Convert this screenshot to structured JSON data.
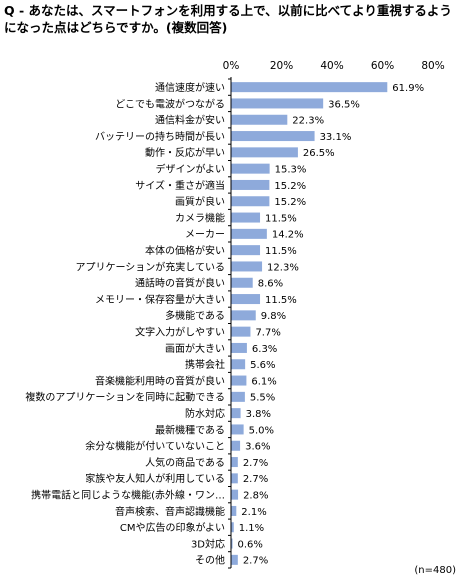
{
  "title": "Q - あなたは、スマートフォンを利用する上で、以前に比べてより重視するようになった点はどちらですか。(複数回答)",
  "note": "(n=480)",
  "colors": {
    "bar": "#8eaadb",
    "axis": "#000000",
    "text": "#000000"
  },
  "chart_data": {
    "type": "bar",
    "orientation": "horizontal",
    "title": "Q - あなたは、スマートフォンを利用する上で、以前に比べてより重視するようになった点はどちらですか。(複数回答)",
    "xlabel": "",
    "ylabel": "",
    "xlim": [
      0,
      80
    ],
    "ticks": [
      "0%",
      "20%",
      "40%",
      "60%",
      "80%"
    ],
    "grid": false,
    "legend": "none",
    "categories": [
      "通信速度が速い",
      "どこでも電波がつながる",
      "通信料金が安い",
      "バッテリーの持ち時間が長い",
      "動作・反応が早い",
      "デザインがよい",
      "サイズ・重さが適当",
      "画質が良い",
      "カメラ機能",
      "メーカー",
      "本体の価格が安い",
      "アプリケーションが充実している",
      "通話時の音質が良い",
      "メモリー・保存容量が大きい",
      "多機能である",
      "文字入力がしやすい",
      "画面が大きい",
      "携帯会社",
      "音楽機能利用時の音質が良い",
      "複数のアプリケーションを同時に起動できる",
      "防水対応",
      "最新機種である",
      "余分な機能が付いていないこと",
      "人気の商品である",
      "家族や友人知人が利用している",
      "携帯電話と同じような機能(赤外線・ワン…",
      "音声検索、音声認識機能",
      "CMや広告の印象がよい",
      "3D対応",
      "その他"
    ],
    "values": [
      61.9,
      36.5,
      22.3,
      33.1,
      26.5,
      15.3,
      15.2,
      15.2,
      11.5,
      14.2,
      11.5,
      12.3,
      8.6,
      11.5,
      9.8,
      7.7,
      6.3,
      5.6,
      6.1,
      5.5,
      3.8,
      5.0,
      3.6,
      2.7,
      2.7,
      2.8,
      2.1,
      1.1,
      0.6,
      2.7
    ],
    "value_labels": [
      "61.9%",
      "36.5%",
      "22.3%",
      "33.1%",
      "26.5%",
      "15.3%",
      "15.2%",
      "15.2%",
      "11.5%",
      "14.2%",
      "11.5%",
      "12.3%",
      "8.6%",
      "11.5%",
      "9.8%",
      "7.7%",
      "6.3%",
      "5.6%",
      "6.1%",
      "5.5%",
      "3.8%",
      "5.0%",
      "3.6%",
      "2.7%",
      "2.7%",
      "2.8%",
      "2.1%",
      "1.1%",
      "0.6%",
      "2.7%"
    ]
  }
}
